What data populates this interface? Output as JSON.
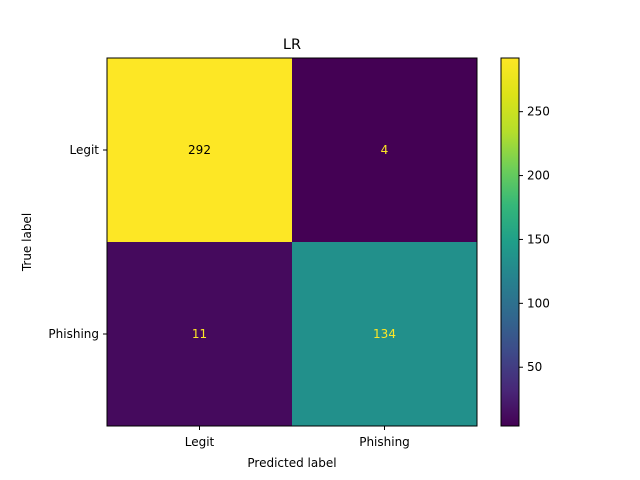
{
  "chart_data": {
    "type": "heatmap",
    "title": "LR",
    "xlabel": "Predicted label",
    "ylabel": "True label",
    "x_categories": [
      "Legit",
      "Phishing"
    ],
    "y_categories": [
      "Legit",
      "Phishing"
    ],
    "values": [
      [
        292,
        4
      ],
      [
        11,
        134
      ]
    ],
    "colormap": "viridis",
    "colorbar": {
      "min": 4,
      "max": 292,
      "ticks": [
        50,
        100,
        150,
        200,
        250
      ]
    },
    "colors": {
      "high": "#fde725",
      "low": "#440154",
      "mid": "#21908d"
    }
  }
}
